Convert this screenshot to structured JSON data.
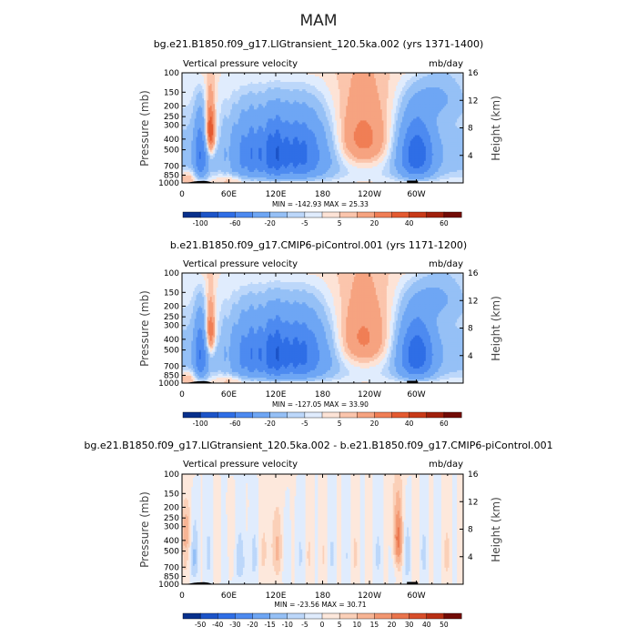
{
  "page_title": "MAM",
  "chart_data": [
    {
      "type": "heatmap",
      "title": "bg.e21.B1850.f09_g17.LIGtransient_120.5ka.002 (yrs 1371-1400)",
      "subtitle_left": "Vertical pressure velocity",
      "subtitle_right": "mb/day",
      "ylabel": "Pressure  (mb)",
      "ylabel_right": "Height  (km)",
      "y_ticks": [
        "100",
        "150",
        "200",
        "250",
        "300",
        "400",
        "500",
        "700",
        "850",
        "1000"
      ],
      "y_ticks_right": [
        "16",
        "12",
        "8",
        "4"
      ],
      "x_ticks": [
        "0",
        "60E",
        "120E",
        "180",
        "120W",
        "60W"
      ],
      "stats": "MIN = -142.93   MAX =  25.33",
      "colorbar_labels": [
        "-100",
        "-60",
        "-20",
        "-5",
        "5",
        "20",
        "40",
        "60"
      ],
      "colorbar_colors": [
        "#08308c",
        "#1c54c8",
        "#2f6ee6",
        "#4d8af0",
        "#6ea6f4",
        "#95c0f6",
        "#bcd7fa",
        "#e0ecfd",
        "#fde3d6",
        "#fbc5ac",
        "#f6a380",
        "#f07e55",
        "#e45a30",
        "#c83a18",
        "#a0200c",
        "#720b06"
      ],
      "field": "lig"
    },
    {
      "type": "heatmap",
      "title": "b.e21.B1850.f09_g17.CMIP6-piControl.001 (yrs 1171-1200)",
      "subtitle_left": "Vertical pressure velocity",
      "subtitle_right": "mb/day",
      "ylabel": "Pressure  (mb)",
      "ylabel_right": "Height  (km)",
      "y_ticks": [
        "100",
        "150",
        "200",
        "250",
        "300",
        "400",
        "500",
        "700",
        "850",
        "1000"
      ],
      "y_ticks_right": [
        "16",
        "12",
        "8",
        "4"
      ],
      "x_ticks": [
        "0",
        "60E",
        "120E",
        "180",
        "120W",
        "60W"
      ],
      "stats": "MIN = -127.05   MAX =  33.90",
      "colorbar_labels": [
        "-100",
        "-60",
        "-20",
        "-5",
        "5",
        "20",
        "40",
        "60"
      ],
      "colorbar_colors": [
        "#08308c",
        "#1c54c8",
        "#2f6ee6",
        "#4d8af0",
        "#6ea6f4",
        "#95c0f6",
        "#bcd7fa",
        "#e0ecfd",
        "#fde3d6",
        "#fbc5ac",
        "#f6a380",
        "#f07e55",
        "#e45a30",
        "#c83a18",
        "#a0200c",
        "#720b06"
      ],
      "field": "pi"
    },
    {
      "type": "heatmap",
      "title": "bg.e21.B1850.f09_g17.LIGtransient_120.5ka.002 - b.e21.B1850.f09_g17.CMIP6-piControl.001",
      "subtitle_left": "Vertical pressure velocity",
      "subtitle_right": "mb/day",
      "ylabel": "Pressure  (mb)",
      "ylabel_right": "Height  (km)",
      "y_ticks": [
        "100",
        "150",
        "200",
        "250",
        "300",
        "400",
        "500",
        "700",
        "850",
        "1000"
      ],
      "y_ticks_right": [
        "16",
        "12",
        "8",
        "4"
      ],
      "x_ticks": [
        "0",
        "60E",
        "120E",
        "180",
        "120W",
        "60W"
      ],
      "stats": "MIN = -23.56   MAX =  30.71",
      "colorbar_labels": [
        "-50",
        "-40",
        "-30",
        "-20",
        "-15",
        "-10",
        "-5",
        "0",
        "5",
        "10",
        "15",
        "20",
        "30",
        "40",
        "50"
      ],
      "colorbar_colors": [
        "#08308c",
        "#1c54c8",
        "#2f6ee6",
        "#4d8af0",
        "#6ea6f4",
        "#95c0f6",
        "#bcd7fa",
        "#e0ecfd",
        "#fde8dc",
        "#fbd0b8",
        "#f7b494",
        "#f29670",
        "#ea744c",
        "#d84e2a",
        "#b82f14",
        "#720b06"
      ],
      "field": "diff"
    }
  ]
}
